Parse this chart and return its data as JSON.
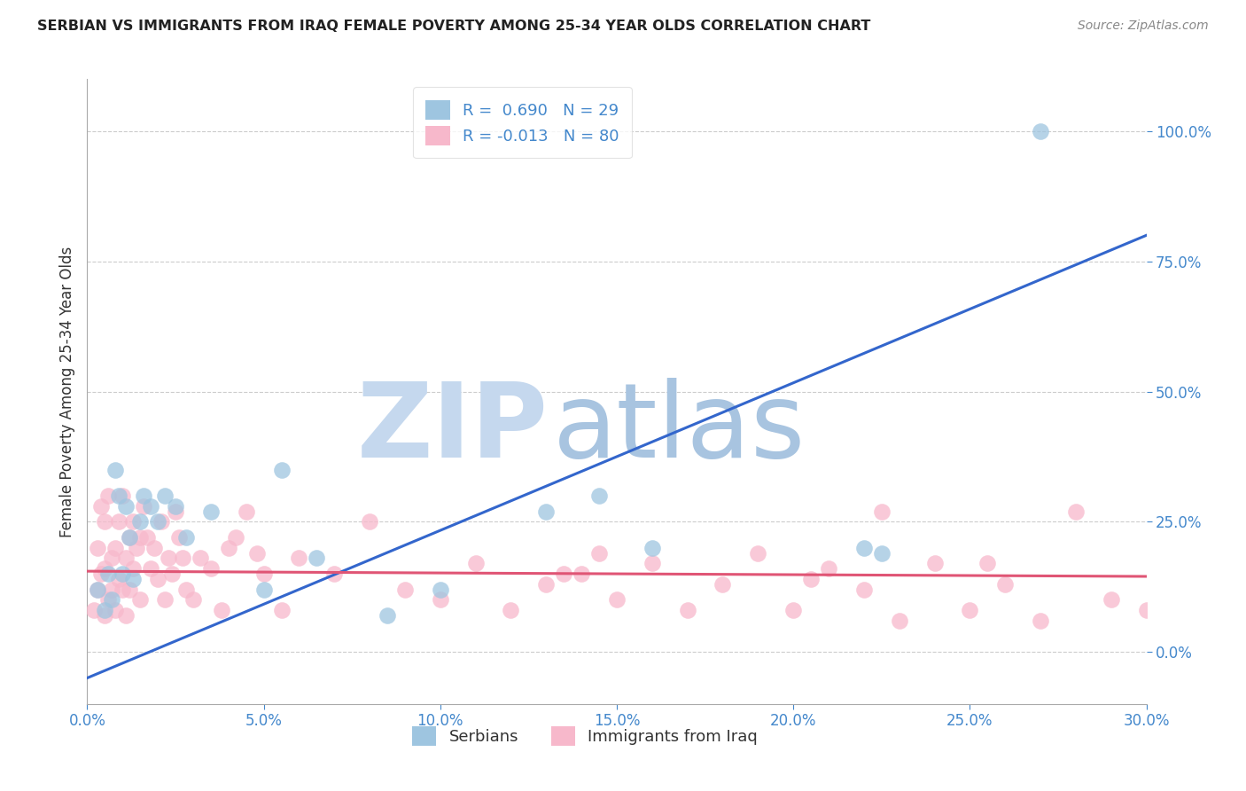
{
  "title": "SERBIAN VS IMMIGRANTS FROM IRAQ FEMALE POVERTY AMONG 25-34 YEAR OLDS CORRELATION CHART",
  "source": "Source: ZipAtlas.com",
  "xlabel_ticks": [
    "0.0%",
    "5.0%",
    "10.0%",
    "15.0%",
    "20.0%",
    "25.0%",
    "30.0%"
  ],
  "xlabel_vals": [
    0,
    5,
    10,
    15,
    20,
    25,
    30
  ],
  "ylabel_ticks": [
    "0.0%",
    "25.0%",
    "50.0%",
    "75.0%",
    "100.0%"
  ],
  "ylabel_vals": [
    0,
    25,
    50,
    75,
    100
  ],
  "ylabel_label": "Female Poverty Among 25-34 Year Olds",
  "xlim": [
    0,
    30
  ],
  "ylim": [
    -10,
    110
  ],
  "legend_serbian_r": "R =  0.690",
  "legend_serbian_n": "N = 29",
  "legend_iraq_r": "R = -0.013",
  "legend_iraq_n": "N = 80",
  "serbian_color": "#9ec5e0",
  "iraq_color": "#f7b8cb",
  "serbian_line_color": "#3366cc",
  "iraq_line_color": "#e05575",
  "title_color": "#222222",
  "axis_label_color": "#333333",
  "tick_color": "#4488cc",
  "watermark_zip_color": "#c5d8ee",
  "watermark_atlas_color": "#a8c4e0",
  "background_color": "#ffffff",
  "grid_color": "#cccccc",
  "serbian_line_x": [
    0,
    30
  ],
  "serbian_line_y": [
    -5,
    80
  ],
  "iraq_line_x": [
    0,
    30
  ],
  "iraq_line_y": [
    15.5,
    14.5
  ],
  "serbian_points_x": [
    0.3,
    0.5,
    0.6,
    0.7,
    0.8,
    0.9,
    1.0,
    1.1,
    1.2,
    1.3,
    1.5,
    1.6,
    1.8,
    2.0,
    2.2,
    2.5,
    2.8,
    3.5,
    5.0,
    5.5,
    6.5,
    8.5,
    10.0,
    13.0,
    14.5,
    16.0,
    22.0,
    22.5,
    27.0
  ],
  "serbian_points_y": [
    12,
    8,
    15,
    10,
    35,
    30,
    15,
    28,
    22,
    14,
    25,
    30,
    28,
    25,
    30,
    28,
    22,
    27,
    12,
    35,
    18,
    7,
    12,
    27,
    30,
    20,
    20,
    19,
    100
  ],
  "iraq_points_x": [
    0.2,
    0.3,
    0.3,
    0.4,
    0.4,
    0.5,
    0.5,
    0.5,
    0.6,
    0.6,
    0.7,
    0.7,
    0.8,
    0.8,
    0.9,
    0.9,
    1.0,
    1.0,
    1.1,
    1.1,
    1.2,
    1.2,
    1.3,
    1.3,
    1.4,
    1.5,
    1.5,
    1.6,
    1.7,
    1.8,
    1.9,
    2.0,
    2.1,
    2.2,
    2.3,
    2.4,
    2.5,
    2.6,
    2.7,
    2.8,
    3.0,
    3.2,
    3.5,
    3.8,
    4.0,
    4.2,
    4.5,
    5.0,
    5.5,
    6.0,
    7.0,
    8.0,
    9.0,
    10.0,
    11.0,
    12.0,
    13.0,
    14.0,
    15.0,
    16.0,
    17.0,
    18.0,
    19.0,
    20.0,
    21.0,
    22.0,
    23.0,
    24.0,
    25.0,
    26.0,
    27.0,
    28.0,
    29.0,
    30.0,
    4.8,
    13.5,
    14.5,
    20.5,
    22.5,
    25.5
  ],
  "iraq_points_y": [
    8,
    12,
    20,
    15,
    28,
    7,
    16,
    25,
    10,
    30,
    12,
    18,
    20,
    8,
    25,
    14,
    12,
    30,
    18,
    7,
    22,
    12,
    16,
    25,
    20,
    10,
    22,
    28,
    22,
    16,
    20,
    14,
    25,
    10,
    18,
    15,
    27,
    22,
    18,
    12,
    10,
    18,
    16,
    8,
    20,
    22,
    27,
    15,
    8,
    18,
    15,
    25,
    12,
    10,
    17,
    8,
    13,
    15,
    10,
    17,
    8,
    13,
    19,
    8,
    16,
    12,
    6,
    17,
    8,
    13,
    6,
    27,
    10,
    8,
    19,
    15,
    19,
    14,
    27,
    17
  ]
}
